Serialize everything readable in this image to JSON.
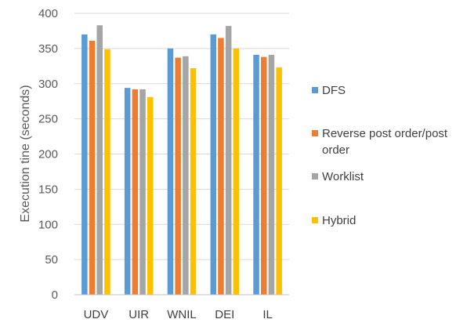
{
  "chart_data": {
    "type": "bar",
    "title": "",
    "xlabel": "",
    "ylabel": "Execution tine (seconds)",
    "ylim": [
      0,
      400
    ],
    "yticks": [
      0,
      50,
      100,
      150,
      200,
      250,
      300,
      350,
      400
    ],
    "grid": true,
    "legend_position": "right",
    "categories": [
      "UDV",
      "UIR",
      "WNIL",
      "DEI",
      "IL"
    ],
    "series": [
      {
        "name": "DFS",
        "color": "#5b9bd5",
        "values": [
          370,
          294,
          350,
          370,
          341
        ],
        "legend_lines": [
          "DFS"
        ]
      },
      {
        "name": "Reverse post order/post order",
        "color": "#ed7d31",
        "values": [
          361,
          292,
          337,
          365,
          338
        ],
        "legend_lines": [
          "Reverse post order/post",
          "order"
        ]
      },
      {
        "name": "Worklist",
        "color": "#a5a5a5",
        "values": [
          383,
          292,
          339,
          382,
          341
        ],
        "legend_lines": [
          "Worklist"
        ]
      },
      {
        "name": "Hybrid",
        "color": "#ffc000",
        "values": [
          349,
          281,
          322,
          350,
          323
        ],
        "legend_lines": [
          "Hybrid"
        ]
      }
    ]
  }
}
